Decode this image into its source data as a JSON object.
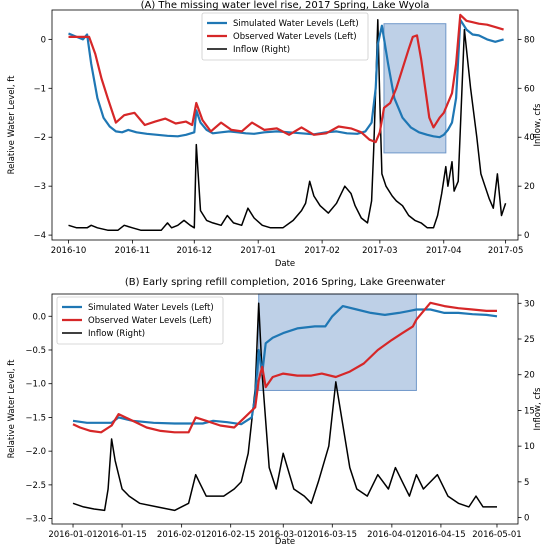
{
  "chart_data": [
    {
      "type": "line",
      "title": "(A) The missing water level rise, 2017 Spring, Lake Wyola",
      "xlabel": "Date",
      "ylabel_left": "Relative Water Level, ft",
      "ylabel_right": "Inflow, cfs",
      "x_tick_labels": [
        "2016-10",
        "2016-11",
        "2016-12",
        "2017-01",
        "2017-02",
        "2017-03",
        "2017-04",
        "2017-05"
      ],
      "y_left_tick_labels": [
        "-4",
        "-3",
        "-2",
        "-1",
        "0"
      ],
      "y_right_tick_labels": [
        "0",
        "20",
        "40",
        "60",
        "80"
      ],
      "xlim": [
        "2016-09-23",
        "2017-05-07"
      ],
      "ylim_left": [
        -4.1,
        0.6
      ],
      "ylim_right": [
        -2,
        92
      ],
      "legend_position": "upper center",
      "highlight_box": {
        "x": [
          "2017-03-03",
          "2017-04-02"
        ],
        "y_left": [
          -2.32,
          0.32
        ],
        "color": "#6f97c9"
      },
      "series": [
        {
          "name": "Simulated Water Levels (Left)",
          "axis": "left",
          "color": "#1f77b4",
          "x": [
            "2016-10-01",
            "2016-10-05",
            "2016-10-08",
            "2016-10-10",
            "2016-10-12",
            "2016-10-15",
            "2016-10-18",
            "2016-10-21",
            "2016-10-24",
            "2016-10-27",
            "2016-10-30",
            "2016-11-03",
            "2016-11-08",
            "2016-11-13",
            "2016-11-18",
            "2016-11-23",
            "2016-11-27",
            "2016-12-01",
            "2016-12-02",
            "2016-12-04",
            "2016-12-07",
            "2016-12-10",
            "2016-12-14",
            "2016-12-18",
            "2016-12-22",
            "2016-12-26",
            "2016-12-30",
            "2017-01-04",
            "2017-01-10",
            "2017-01-16",
            "2017-01-22",
            "2017-01-28",
            "2017-02-03",
            "2017-02-08",
            "2017-02-13",
            "2017-02-18",
            "2017-02-22",
            "2017-02-25",
            "2017-02-27",
            "2017-02-28",
            "2017-03-02",
            "2017-03-05",
            "2017-03-08",
            "2017-03-12",
            "2017-03-16",
            "2017-03-20",
            "2017-03-24",
            "2017-03-27",
            "2017-03-30",
            "2017-04-01",
            "2017-04-03",
            "2017-04-05",
            "2017-04-07",
            "2017-04-09",
            "2017-04-12",
            "2017-04-15",
            "2017-04-18",
            "2017-04-22",
            "2017-04-26",
            "2017-04-30"
          ],
          "values": [
            0.12,
            0.05,
            0.0,
            0.1,
            -0.5,
            -1.2,
            -1.6,
            -1.78,
            -1.88,
            -1.9,
            -1.85,
            -1.9,
            -1.93,
            -1.95,
            -1.97,
            -1.98,
            -1.95,
            -1.9,
            -1.45,
            -1.7,
            -1.85,
            -1.92,
            -1.9,
            -1.88,
            -1.9,
            -1.92,
            -1.93,
            -1.9,
            -1.88,
            -1.9,
            -1.92,
            -1.94,
            -1.9,
            -1.88,
            -1.92,
            -1.93,
            -1.88,
            -1.7,
            -1.0,
            -0.1,
            0.28,
            -0.5,
            -1.2,
            -1.6,
            -1.8,
            -1.9,
            -1.95,
            -1.98,
            -2.0,
            -1.95,
            -1.85,
            -1.7,
            -1.2,
            0.4,
            0.2,
            0.1,
            0.08,
            0.0,
            -0.05,
            0.0
          ]
        },
        {
          "name": "Observed Water Levels (Left)",
          "axis": "left",
          "color": "#d62728",
          "x": [
            "2016-10-01",
            "2016-10-05",
            "2016-10-08",
            "2016-10-11",
            "2016-10-14",
            "2016-10-17",
            "2016-10-20",
            "2016-10-24",
            "2016-10-28",
            "2016-11-02",
            "2016-11-07",
            "2016-11-12",
            "2016-11-17",
            "2016-11-22",
            "2016-11-27",
            "2016-11-30",
            "2016-12-02",
            "2016-12-05",
            "2016-12-09",
            "2016-12-14",
            "2016-12-19",
            "2016-12-24",
            "2016-12-29",
            "2017-01-04",
            "2017-01-10",
            "2017-01-16",
            "2017-01-22",
            "2017-01-28",
            "2017-02-03",
            "2017-02-09",
            "2017-02-15",
            "2017-02-20",
            "2017-02-24",
            "2017-02-27",
            "2017-03-01",
            "2017-03-03",
            "2017-03-06",
            "2017-03-09",
            "2017-03-12",
            "2017-03-15",
            "2017-03-17",
            "2017-03-19",
            "2017-03-21",
            "2017-03-23",
            "2017-03-25",
            "2017-03-27",
            "2017-03-30",
            "2017-04-01",
            "2017-04-03",
            "2017-04-05",
            "2017-04-07",
            "2017-04-09",
            "2017-04-12",
            "2017-04-15",
            "2017-04-18",
            "2017-04-22",
            "2017-04-26",
            "2017-04-30"
          ],
          "values": [
            0.05,
            0.05,
            0.05,
            0.05,
            -0.3,
            -0.8,
            -1.2,
            -1.7,
            -1.55,
            -1.5,
            -1.75,
            -1.68,
            -1.62,
            -1.72,
            -1.68,
            -1.75,
            -1.3,
            -1.65,
            -1.88,
            -1.7,
            -1.85,
            -1.88,
            -1.7,
            -1.85,
            -1.82,
            -1.95,
            -1.8,
            -1.95,
            -1.92,
            -1.78,
            -1.82,
            -1.9,
            -2.05,
            -2.1,
            -1.9,
            -1.4,
            -1.3,
            -1.0,
            -0.6,
            -0.2,
            0.05,
            0.08,
            -0.4,
            -1.0,
            -1.6,
            -1.8,
            -1.6,
            -1.5,
            -1.3,
            -1.1,
            -0.5,
            0.5,
            0.38,
            0.35,
            0.32,
            0.3,
            0.25,
            0.2
          ]
        },
        {
          "name": "Inflow (Right)",
          "axis": "right",
          "color": "#000000",
          "x": [
            "2016-10-01",
            "2016-10-05",
            "2016-10-10",
            "2016-10-12",
            "2016-10-15",
            "2016-10-20",
            "2016-10-25",
            "2016-10-28",
            "2016-11-01",
            "2016-11-05",
            "2016-11-10",
            "2016-11-15",
            "2016-11-18",
            "2016-11-20",
            "2016-11-23",
            "2016-11-26",
            "2016-11-29",
            "2016-12-01",
            "2016-12-02",
            "2016-12-04",
            "2016-12-07",
            "2016-12-10",
            "2016-12-14",
            "2016-12-17",
            "2016-12-20",
            "2016-12-24",
            "2016-12-27",
            "2016-12-30",
            "2017-01-03",
            "2017-01-07",
            "2017-01-10",
            "2017-01-13",
            "2017-01-18",
            "2017-01-22",
            "2017-01-24",
            "2017-01-26",
            "2017-01-28",
            "2017-01-31",
            "2017-02-04",
            "2017-02-08",
            "2017-02-12",
            "2017-02-15",
            "2017-02-17",
            "2017-02-20",
            "2017-02-23",
            "2017-02-25",
            "2017-02-26",
            "2017-02-27",
            "2017-02-28",
            "2017-03-01",
            "2017-03-02",
            "2017-03-04",
            "2017-03-07",
            "2017-03-09",
            "2017-03-12",
            "2017-03-15",
            "2017-03-18",
            "2017-03-21",
            "2017-03-24",
            "2017-03-27",
            "2017-03-29",
            "2017-03-31",
            "2017-04-02",
            "2017-04-03",
            "2017-04-05",
            "2017-04-06",
            "2017-04-08",
            "2017-04-11",
            "2017-04-14",
            "2017-04-17",
            "2017-04-19",
            "2017-04-21",
            "2017-04-23",
            "2017-04-25",
            "2017-04-27",
            "2017-04-29",
            "2017-05-01"
          ],
          "values": [
            4,
            3,
            3,
            4,
            3,
            2,
            2,
            4,
            3,
            2,
            2,
            2,
            5,
            3,
            4,
            6,
            4,
            3,
            37,
            10,
            6,
            5,
            4,
            8,
            5,
            4,
            11,
            7,
            4,
            3,
            3,
            3,
            6,
            10,
            13,
            22,
            16,
            12,
            9,
            13,
            20,
            17,
            12,
            7,
            5,
            14,
            35,
            60,
            88,
            55,
            25,
            20,
            16,
            14,
            12,
            8,
            6,
            5,
            3,
            3,
            8,
            17,
            28,
            20,
            30,
            18,
            22,
            84,
            60,
            40,
            25,
            20,
            15,
            11,
            25,
            8,
            13
          ]
        }
      ]
    },
    {
      "type": "line",
      "title": "(B) Early spring refill completion, 2016 Spring, Lake Greenwater",
      "xlabel": "Date",
      "ylabel_left": "Relative Water Level, ft",
      "ylabel_right": "Inflow, cfs",
      "x_tick_labels": [
        "2016-01-01",
        "2016-01-15",
        "2016-02-01",
        "2016-02-15",
        "2016-03-01",
        "2016-03-15",
        "2016-04-01",
        "2016-04-15",
        "2016-05-01"
      ],
      "y_left_tick_labels": [
        "-3.0",
        "-2.5",
        "-2.0",
        "-1.5",
        "-1.0",
        "-0.5",
        "0.0"
      ],
      "y_right_tick_labels": [
        "0",
        "5",
        "10",
        "15",
        "20",
        "25",
        "30"
      ],
      "xlim": [
        "2015-12-26",
        "2016-05-07"
      ],
      "ylim_left": [
        -3.08,
        0.33
      ],
      "ylim_right": [
        -0.9,
        31.3
      ],
      "legend_position": "upper left",
      "highlight_box": {
        "x": [
          "2016-02-23",
          "2016-04-08"
        ],
        "y_left": [
          -1.1,
          0.33
        ],
        "color": "#6f97c9"
      },
      "series": [
        {
          "name": "Simulated Water Levels (Left)",
          "axis": "left",
          "color": "#1f77b4",
          "x": [
            "2016-01-01",
            "2016-01-05",
            "2016-01-09",
            "2016-01-12",
            "2016-01-14",
            "2016-01-18",
            "2016-01-24",
            "2016-01-30",
            "2016-02-04",
            "2016-02-07",
            "2016-02-10",
            "2016-02-14",
            "2016-02-18",
            "2016-02-21",
            "2016-02-22",
            "2016-02-23",
            "2016-02-24",
            "2016-02-25",
            "2016-02-27",
            "2016-03-01",
            "2016-03-05",
            "2016-03-10",
            "2016-03-13",
            "2016-03-15",
            "2016-03-18",
            "2016-03-22",
            "2016-03-26",
            "2016-03-30",
            "2016-04-03",
            "2016-04-06",
            "2016-04-08",
            "2016-04-12",
            "2016-04-16",
            "2016-04-20",
            "2016-04-24",
            "2016-04-28",
            "2016-05-01"
          ],
          "values": [
            -1.55,
            -1.58,
            -1.58,
            -1.58,
            -1.5,
            -1.55,
            -1.58,
            -1.59,
            -1.59,
            -1.59,
            -1.55,
            -1.57,
            -1.6,
            -1.5,
            -1.2,
            -0.5,
            -0.85,
            -0.4,
            -0.32,
            -0.25,
            -0.18,
            -0.15,
            -0.15,
            0.0,
            0.15,
            0.1,
            0.05,
            0.02,
            0.05,
            0.08,
            0.1,
            0.1,
            0.05,
            0.05,
            0.03,
            0.02,
            0.0
          ]
        },
        {
          "name": "Observed Water Levels (Left)",
          "axis": "left",
          "color": "#d62728",
          "x": [
            "2016-01-01",
            "2016-01-03",
            "2016-01-06",
            "2016-01-09",
            "2016-01-12",
            "2016-01-14",
            "2016-01-18",
            "2016-01-22",
            "2016-01-26",
            "2016-01-30",
            "2016-02-03",
            "2016-02-05",
            "2016-02-08",
            "2016-02-12",
            "2016-02-16",
            "2016-02-19",
            "2016-02-22",
            "2016-02-23",
            "2016-02-24",
            "2016-02-25",
            "2016-02-27",
            "2016-03-01",
            "2016-03-05",
            "2016-03-09",
            "2016-03-12",
            "2016-03-16",
            "2016-03-20",
            "2016-03-24",
            "2016-03-28",
            "2016-04-01",
            "2016-04-04",
            "2016-04-07",
            "2016-04-08",
            "2016-04-12",
            "2016-04-16",
            "2016-04-20",
            "2016-04-24",
            "2016-04-28",
            "2016-05-01"
          ],
          "values": [
            -1.6,
            -1.65,
            -1.7,
            -1.72,
            -1.62,
            -1.45,
            -1.55,
            -1.65,
            -1.7,
            -1.72,
            -1.72,
            -1.5,
            -1.55,
            -1.62,
            -1.65,
            -1.5,
            -1.35,
            -0.95,
            -0.75,
            -1.05,
            -0.9,
            -0.85,
            -0.88,
            -0.88,
            -0.85,
            -0.9,
            -0.82,
            -0.7,
            -0.5,
            -0.35,
            -0.25,
            -0.15,
            -0.05,
            0.2,
            0.15,
            0.12,
            0.1,
            0.08,
            0.08
          ]
        },
        {
          "name": "Inflow (Right)",
          "axis": "right",
          "color": "#000000",
          "x": [
            "2016-01-01",
            "2016-01-04",
            "2016-01-07",
            "2016-01-10",
            "2016-01-11",
            "2016-01-12",
            "2016-01-13",
            "2016-01-15",
            "2016-01-17",
            "2016-01-20",
            "2016-01-25",
            "2016-01-30",
            "2016-02-03",
            "2016-02-05",
            "2016-02-06",
            "2016-02-08",
            "2016-02-10",
            "2016-02-13",
            "2016-02-16",
            "2016-02-18",
            "2016-02-20",
            "2016-02-22",
            "2016-02-23",
            "2016-02-24",
            "2016-02-26",
            "2016-02-28",
            "2016-03-01",
            "2016-03-04",
            "2016-03-07",
            "2016-03-09",
            "2016-03-11",
            "2016-03-14",
            "2016-03-16",
            "2016-03-18",
            "2016-03-20",
            "2016-03-22",
            "2016-03-25",
            "2016-03-28",
            "2016-03-31",
            "2016-04-02",
            "2016-04-04",
            "2016-04-06",
            "2016-04-08",
            "2016-04-10",
            "2016-04-12",
            "2016-04-14",
            "2016-04-17",
            "2016-04-20",
            "2016-04-23",
            "2016-04-25",
            "2016-04-27",
            "2016-04-29",
            "2016-05-01"
          ],
          "values": [
            2,
            1.5,
            1.2,
            1,
            4,
            11,
            8,
            4,
            3,
            2,
            1.5,
            1,
            2,
            6,
            5,
            3,
            3,
            3,
            4,
            5,
            9,
            18,
            30,
            20,
            7,
            4,
            9,
            4,
            3,
            2,
            5,
            10,
            19,
            13,
            7,
            4,
            3,
            6,
            4,
            7,
            5,
            3,
            6,
            4,
            5,
            6,
            3,
            2,
            1.5,
            3,
            1.5,
            1.5,
            1.5
          ]
        }
      ]
    }
  ]
}
